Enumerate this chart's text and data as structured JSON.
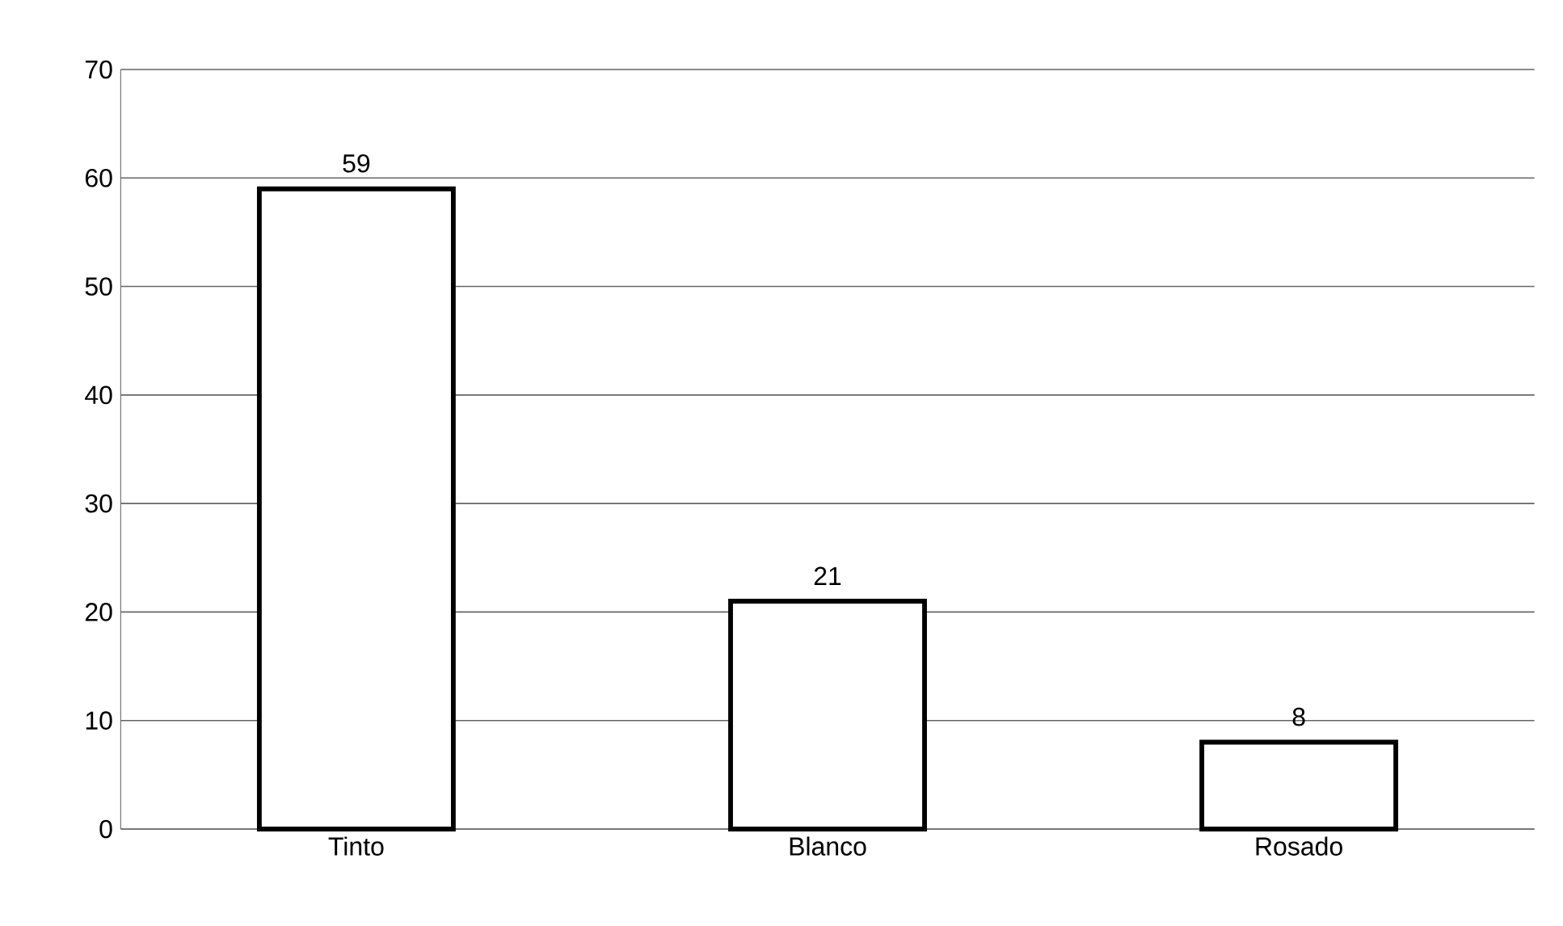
{
  "chart_data": {
    "type": "bar",
    "categories": [
      "Tinto",
      "Blanco",
      "Rosado"
    ],
    "values": [
      59,
      21,
      8
    ],
    "color": "#ffffff",
    "ylim": [
      0,
      70
    ],
    "yticks": [
      0,
      10,
      20,
      30,
      40,
      50,
      60,
      70
    ],
    "grid": "y",
    "data_labels": true
  }
}
